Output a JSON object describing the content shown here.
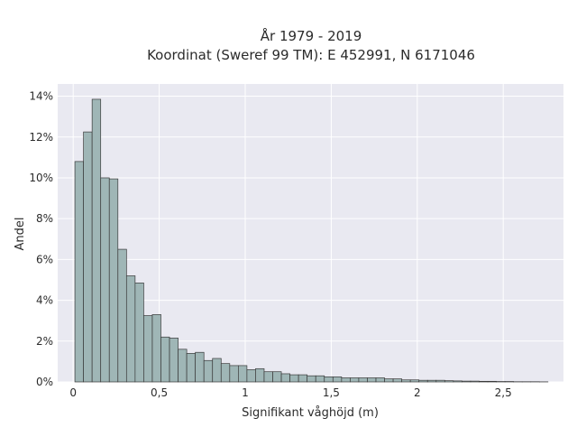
{
  "chart_data": {
    "type": "bar",
    "title_lines": [
      "År 1979 - 2019",
      "Koordinat (Sweref 99 TM): E 452991, N 6171046"
    ],
    "xlabel": "Signifikant våghöjd (m)",
    "ylabel": "Andel",
    "x_ticks": [
      {
        "value": 0,
        "label": "0"
      },
      {
        "value": 0.5,
        "label": "0,5"
      },
      {
        "value": 1,
        "label": "1"
      },
      {
        "value": 1.5,
        "label": "1,5"
      },
      {
        "value": 2,
        "label": "2"
      },
      {
        "value": 2.5,
        "label": "2,5"
      }
    ],
    "y_ticks": [
      {
        "value": 0,
        "label": "0%"
      },
      {
        "value": 2,
        "label": "2%"
      },
      {
        "value": 4,
        "label": "4%"
      },
      {
        "value": 6,
        "label": "6%"
      },
      {
        "value": 8,
        "label": "8%"
      },
      {
        "value": 10,
        "label": "10%"
      },
      {
        "value": 12,
        "label": "12%"
      },
      {
        "value": 14,
        "label": "14%"
      }
    ],
    "xlim": [
      -0.09,
      2.85
    ],
    "ylim": [
      0,
      14.6
    ],
    "bin_start": 0.01,
    "bin_width": 0.05,
    "values": [
      10.8,
      12.25,
      13.85,
      10.0,
      9.95,
      6.5,
      5.2,
      4.85,
      3.25,
      3.3,
      2.2,
      2.15,
      1.6,
      1.4,
      1.45,
      1.05,
      1.15,
      0.9,
      0.8,
      0.8,
      0.6,
      0.65,
      0.5,
      0.5,
      0.4,
      0.35,
      0.35,
      0.3,
      0.3,
      0.25,
      0.25,
      0.2,
      0.2,
      0.2,
      0.2,
      0.2,
      0.15,
      0.15,
      0.1,
      0.1,
      0.08,
      0.08,
      0.08,
      0.06,
      0.05,
      0.04,
      0.04,
      0.03,
      0.03,
      0.02,
      0.02,
      0.01,
      0.01,
      0.01,
      0.005
    ],
    "grid": true,
    "colors": {
      "plot_background": "#e9e9f1",
      "grid": "#ffffff",
      "bar_fill": "#9fb6b6",
      "bar_edge": "#3a3a3a"
    }
  }
}
